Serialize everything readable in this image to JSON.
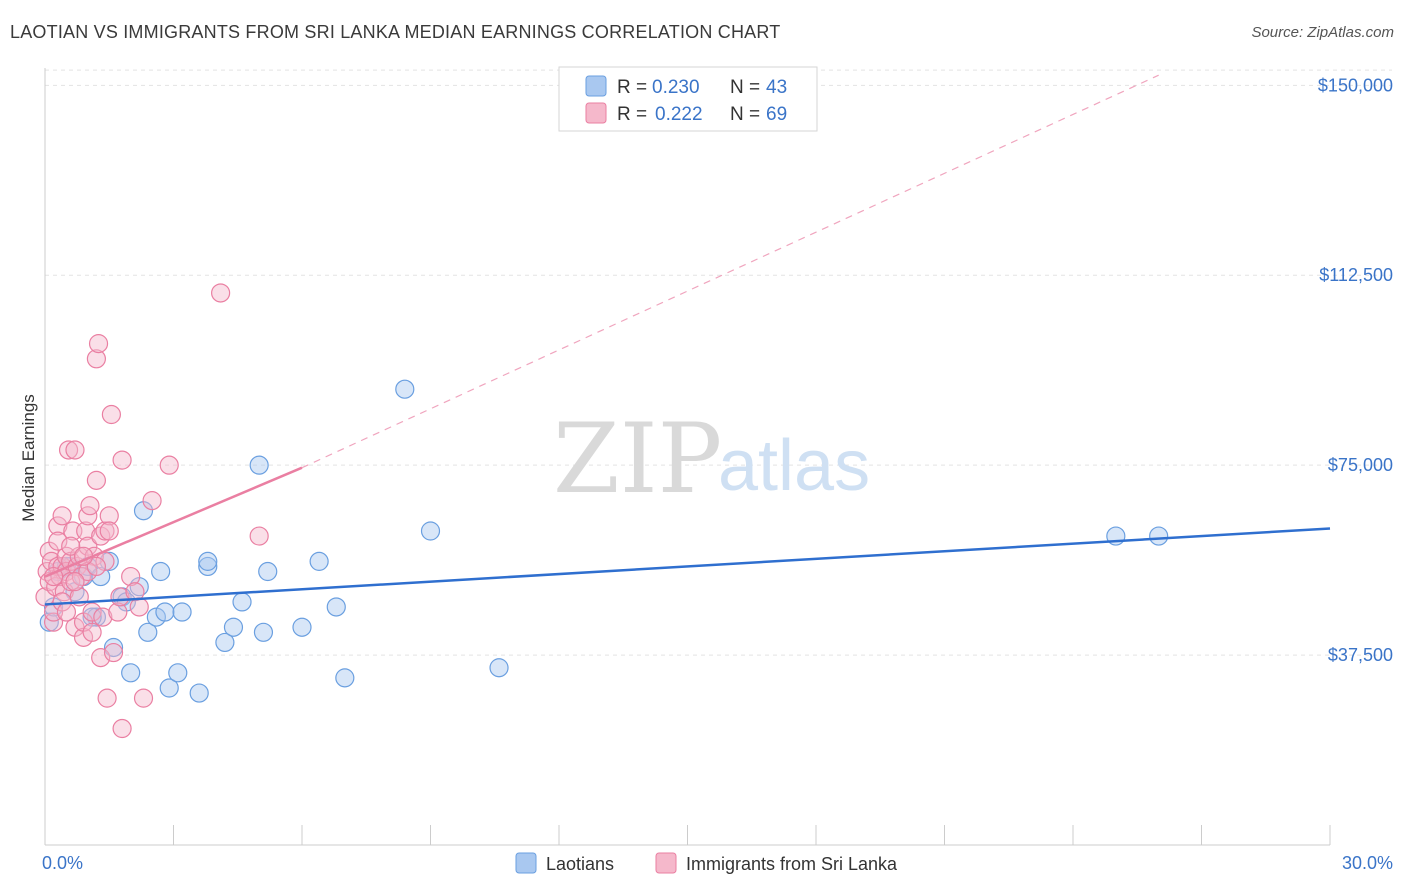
{
  "header": {
    "title": "LAOTIAN VS IMMIGRANTS FROM SRI LANKA MEDIAN EARNINGS CORRELATION CHART",
    "source": "Source: ZipAtlas.com"
  },
  "watermark": {
    "zip": "ZIP",
    "atlas": "atlas"
  },
  "legend": {
    "rows": [
      {
        "r_label": "R =",
        "r_value": "0.230",
        "n_label": "N =",
        "n_value": "43",
        "color": "#a9c8f0"
      },
      {
        "r_label": "R =",
        "r_value": "0.222",
        "n_label": "N =",
        "n_value": "69",
        "color": "#f5b8cb"
      }
    ]
  },
  "chart_data": {
    "type": "scatter",
    "title": "LAOTIAN VS IMMIGRANTS FROM SRI LANKA MEDIAN EARNINGS CORRELATION CHART",
    "xlabel": "",
    "ylabel": "Median Earnings",
    "xlim": [
      0,
      30
    ],
    "ylim": [
      0,
      155000
    ],
    "x_tick_labels": [
      "0.0%",
      "30.0%"
    ],
    "y_ticks": [
      37500,
      75000,
      112500,
      150000
    ],
    "y_tick_labels": [
      "$37,500",
      "$75,000",
      "$112,500",
      "$150,000"
    ],
    "grid": true,
    "series": [
      {
        "name": "Laotians",
        "color": "#6a9fe0",
        "fill": "#a9c8f0",
        "points": [
          [
            0.1,
            44000
          ],
          [
            0.2,
            47000
          ],
          [
            0.3,
            54000
          ],
          [
            0.5,
            55000
          ],
          [
            0.6,
            55000
          ],
          [
            0.7,
            50000
          ],
          [
            0.9,
            53000
          ],
          [
            1.0,
            55000
          ],
          [
            1.2,
            45000
          ],
          [
            1.3,
            53000
          ],
          [
            1.5,
            56000
          ],
          [
            1.6,
            39000
          ],
          [
            1.8,
            49000
          ],
          [
            1.9,
            48000
          ],
          [
            2.0,
            34000
          ],
          [
            2.2,
            51000
          ],
          [
            2.3,
            66000
          ],
          [
            2.4,
            42000
          ],
          [
            2.6,
            45000
          ],
          [
            2.7,
            54000
          ],
          [
            2.8,
            46000
          ],
          [
            2.9,
            31000
          ],
          [
            3.1,
            34000
          ],
          [
            3.2,
            46000
          ],
          [
            3.6,
            30000
          ],
          [
            3.8,
            55000
          ],
          [
            3.8,
            56000
          ],
          [
            4.2,
            40000
          ],
          [
            4.4,
            43000
          ],
          [
            4.6,
            48000
          ],
          [
            5.0,
            75000
          ],
          [
            5.1,
            42000
          ],
          [
            5.2,
            54000
          ],
          [
            6.0,
            43000
          ],
          [
            6.4,
            56000
          ],
          [
            6.8,
            47000
          ],
          [
            7.0,
            33000
          ],
          [
            8.4,
            90000
          ],
          [
            9.0,
            62000
          ],
          [
            10.6,
            35000
          ],
          [
            25.0,
            61000
          ],
          [
            26.0,
            61000
          ],
          [
            1.1,
            45000
          ]
        ]
      },
      {
        "name": "Immigrants from Sri Lanka",
        "color": "#ea7fa2",
        "fill": "#f5b8cb",
        "points": [
          [
            0.0,
            49000
          ],
          [
            0.05,
            54000
          ],
          [
            0.1,
            52000
          ],
          [
            0.1,
            58000
          ],
          [
            0.15,
            56000
          ],
          [
            0.2,
            44000
          ],
          [
            0.2,
            46000
          ],
          [
            0.25,
            51000
          ],
          [
            0.3,
            55000
          ],
          [
            0.3,
            63000
          ],
          [
            0.35,
            53000
          ],
          [
            0.4,
            65000
          ],
          [
            0.4,
            55000
          ],
          [
            0.45,
            50000
          ],
          [
            0.5,
            57000
          ],
          [
            0.5,
            54000
          ],
          [
            0.55,
            78000
          ],
          [
            0.6,
            52000
          ],
          [
            0.6,
            56000
          ],
          [
            0.65,
            62000
          ],
          [
            0.7,
            43000
          ],
          [
            0.7,
            78000
          ],
          [
            0.75,
            55000
          ],
          [
            0.8,
            57000
          ],
          [
            0.85,
            53000
          ],
          [
            0.9,
            41000
          ],
          [
            0.9,
            44000
          ],
          [
            0.95,
            62000
          ],
          [
            1.0,
            59000
          ],
          [
            1.0,
            65000
          ],
          [
            1.05,
            67000
          ],
          [
            1.1,
            46000
          ],
          [
            1.1,
            42000
          ],
          [
            1.15,
            57000
          ],
          [
            1.2,
            72000
          ],
          [
            1.2,
            96000
          ],
          [
            1.25,
            99000
          ],
          [
            1.3,
            37000
          ],
          [
            1.3,
            61000
          ],
          [
            1.35,
            45000
          ],
          [
            1.4,
            56000
          ],
          [
            1.4,
            62000
          ],
          [
            1.45,
            29000
          ],
          [
            1.5,
            65000
          ],
          [
            1.5,
            62000
          ],
          [
            1.55,
            85000
          ],
          [
            1.6,
            38000
          ],
          [
            1.7,
            46000
          ],
          [
            1.75,
            49000
          ],
          [
            1.8,
            76000
          ],
          [
            1.8,
            23000
          ],
          [
            2.0,
            53000
          ],
          [
            2.1,
            50000
          ],
          [
            2.2,
            47000
          ],
          [
            2.3,
            29000
          ],
          [
            2.5,
            68000
          ],
          [
            2.9,
            75000
          ],
          [
            4.1,
            109000
          ],
          [
            5.0,
            61000
          ],
          [
            0.3,
            60000
          ],
          [
            0.6,
            59000
          ],
          [
            0.8,
            49000
          ],
          [
            1.0,
            54000
          ],
          [
            0.4,
            48000
          ],
          [
            1.2,
            55000
          ],
          [
            0.2,
            53000
          ],
          [
            0.5,
            46000
          ],
          [
            0.9,
            57000
          ],
          [
            0.7,
            52000
          ]
        ]
      }
    ],
    "trend_lines": [
      {
        "series": "Laotians",
        "x": [
          0,
          30
        ],
        "y": [
          47500,
          62500
        ],
        "style": "solid"
      },
      {
        "series": "Immigrants from Sri Lanka",
        "x": [
          0,
          6
        ],
        "y": [
          53000,
          74500
        ],
        "style": "solid"
      },
      {
        "series": "Immigrants from Sri Lanka",
        "x": [
          6,
          26
        ],
        "y": [
          74500,
          152000
        ],
        "style": "dashed"
      }
    ],
    "legend_position": "top-center"
  },
  "bottom_legend": [
    {
      "label": "Laotians",
      "color": "#a9c8f0"
    },
    {
      "label": "Immigrants from Sri Lanka",
      "color": "#f5b8cb"
    }
  ]
}
